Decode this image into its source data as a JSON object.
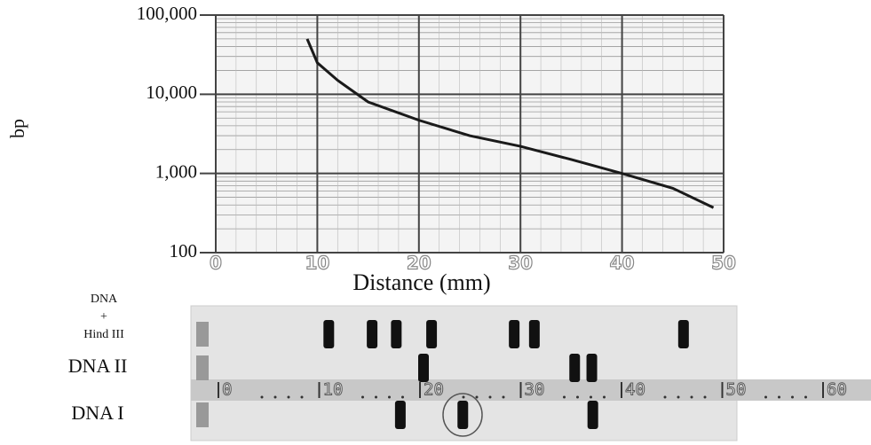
{
  "chart_data": {
    "type": "line",
    "ylabel": "bp",
    "xlabel": "Distance (mm)",
    "x": [
      9,
      10,
      12,
      15,
      20,
      25,
      30,
      35,
      40,
      45,
      49
    ],
    "values": [
      50000,
      25000,
      15000,
      8000,
      4700,
      3000,
      2200,
      1500,
      1000,
      650,
      370
    ],
    "color": "#1a1a1a",
    "ylog": true,
    "grid": true,
    "xlim": [
      0,
      50
    ],
    "xticks": [
      0,
      10,
      20,
      30,
      40,
      50
    ],
    "ylim": [
      100,
      100000
    ],
    "yticks": [
      100,
      {
        "value": 1000,
        "label": "1,000"
      },
      {
        "value": 10000,
        "label": "10,000"
      },
      {
        "value": 100000,
        "label": "100,000"
      }
    ]
  },
  "gel": {
    "ruler": [
      0,
      10,
      20,
      30,
      40,
      50,
      60
    ],
    "lanes": [
      {
        "label": [
          "DNA",
          "+",
          "Hind III"
        ],
        "bands": [
          10.6,
          14.9,
          17.3,
          20.8,
          29,
          31,
          45.8
        ]
      },
      {
        "label": [
          "DNA II"
        ],
        "bands": [
          20,
          35,
          36.7
        ]
      },
      {
        "label": [
          "DNA I"
        ],
        "bands": [
          17.7,
          23.9,
          36.8
        ]
      }
    ]
  }
}
